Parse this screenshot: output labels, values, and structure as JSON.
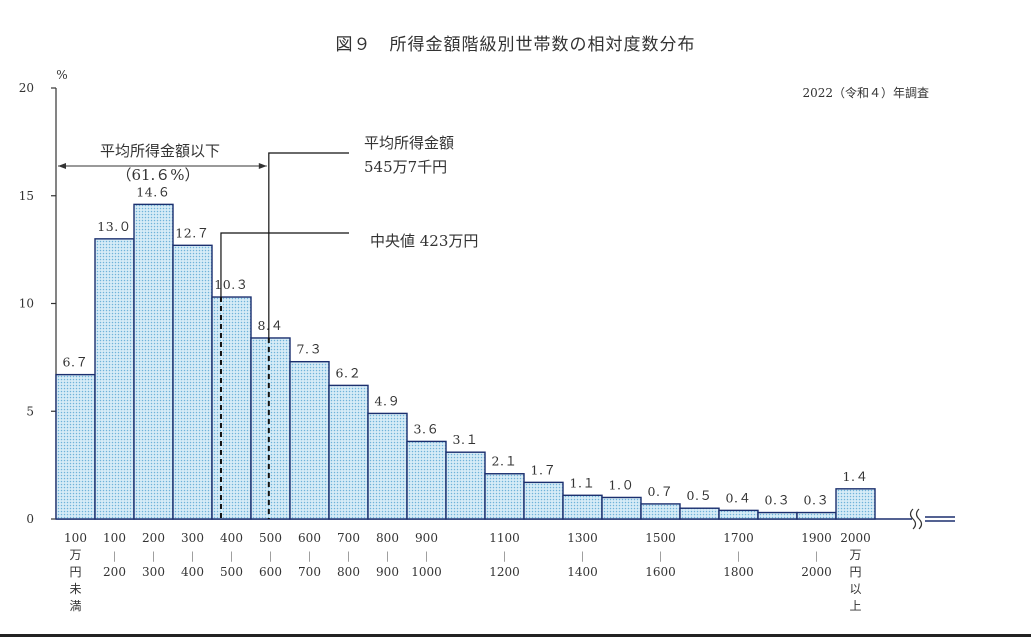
{
  "title": "図９　所得金額階級別世帯数の相対度数分布",
  "survey_note": "2022（令和４）年調査",
  "colors": {
    "bar_fill": "#d6ecf7",
    "bar_dots": "#6fb3d9",
    "bar_stroke": "#1b2f6e",
    "text": "#333333"
  },
  "chart_data": {
    "type": "bar",
    "title": "図９　所得金額階級別世帯数の相対度数分布",
    "ylabel": "%",
    "ylim": [
      0,
      20
    ],
    "yticks": [
      "0",
      "5",
      "10",
      "15",
      "20"
    ],
    "categories": [
      "100万円未満",
      "100-200",
      "200-300",
      "300-400",
      "400-500",
      "500-600",
      "600-700",
      "700-800",
      "800-900",
      "900-1000",
      "1000-1100",
      "1100-1200",
      "1200-1300",
      "1300-1400",
      "1400-1500",
      "1500-1600",
      "1600-1700",
      "1700-1800",
      "1800-1900",
      "1900-2000",
      "2000万円以上"
    ],
    "values": [
      6.7,
      13.0,
      14.6,
      12.7,
      10.3,
      8.4,
      7.3,
      6.2,
      4.9,
      3.6,
      3.1,
      2.1,
      1.7,
      1.1,
      1.0,
      0.7,
      0.5,
      0.4,
      0.3,
      0.3,
      1.4
    ],
    "value_labels": [
      "6.７",
      "13.０",
      "14.６",
      "12.７",
      "10.３",
      "8.４",
      "7.３",
      "6.２",
      "4.９",
      "3.６",
      "3.１",
      "2.１",
      "1.７",
      "1.１",
      "1.０",
      "0.７",
      "0.５",
      "0.４",
      "0.３",
      "0.３",
      "1.４"
    ],
    "x_labels": [
      {
        "top": "100",
        "lines": [
          "万",
          "円",
          "未",
          "満"
        ]
      },
      {
        "top": "100",
        "lines": [
          "|",
          "200"
        ]
      },
      {
        "top": "200",
        "lines": [
          "|",
          "300"
        ]
      },
      {
        "top": "300",
        "lines": [
          "|",
          "400"
        ]
      },
      {
        "top": "400",
        "lines": [
          "|",
          "500"
        ]
      },
      {
        "top": "500",
        "lines": [
          "|",
          "600"
        ]
      },
      {
        "top": "600",
        "lines": [
          "|",
          "700"
        ]
      },
      {
        "top": "700",
        "lines": [
          "|",
          "800"
        ]
      },
      {
        "top": "800",
        "lines": [
          "|",
          "900"
        ]
      },
      {
        "top": "900",
        "lines": [
          "|",
          "1000"
        ]
      },
      null,
      {
        "top": "1100",
        "lines": [
          "|",
          "1200"
        ]
      },
      null,
      {
        "top": "1300",
        "lines": [
          "|",
          "1400"
        ]
      },
      null,
      {
        "top": "1500",
        "lines": [
          "|",
          "1600"
        ]
      },
      null,
      {
        "top": "1700",
        "lines": [
          "|",
          "1800"
        ]
      },
      null,
      {
        "top": "1900",
        "lines": [
          "|",
          "2000"
        ]
      },
      {
        "top": "2000",
        "lines": [
          "万",
          "円",
          "以",
          "上"
        ]
      }
    ],
    "annotations": {
      "below_mean": {
        "line1": "平均所得金額以下",
        "line2": "（61.６%）"
      },
      "mean": {
        "line1": "平均所得金額",
        "line2": "545万7千円",
        "value": 545.7
      },
      "median": {
        "label": "中央値 423万円",
        "value": 423
      }
    },
    "grid": false,
    "legend": "none"
  }
}
